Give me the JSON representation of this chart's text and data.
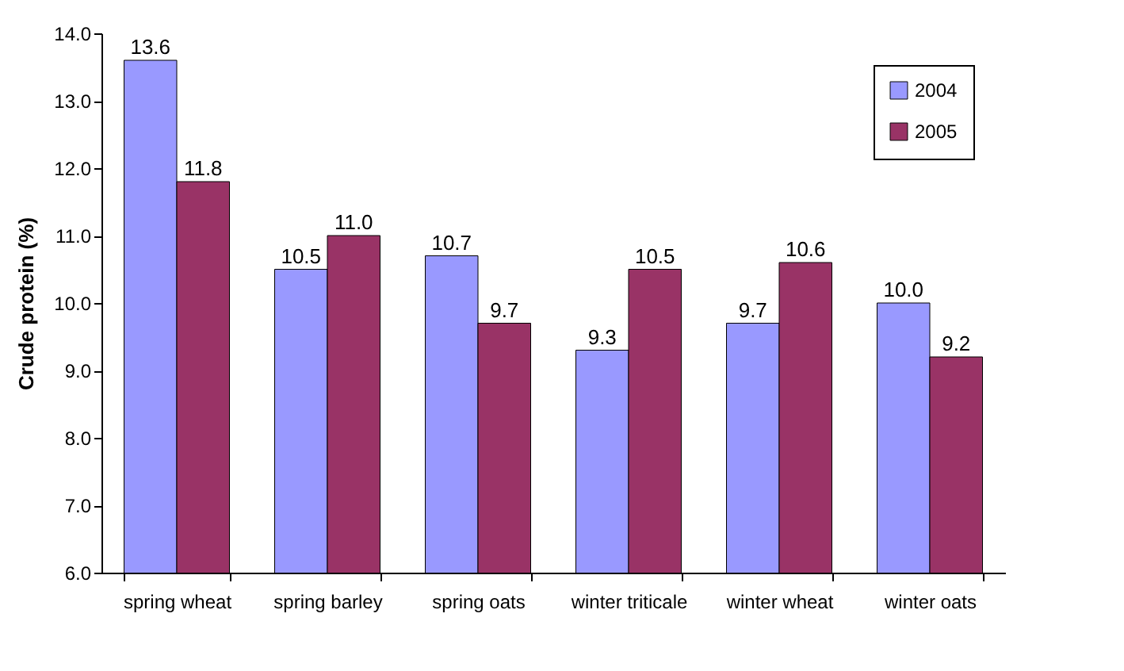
{
  "chart_data": {
    "type": "bar",
    "ylabel": "Crude protein (%)",
    "categories": [
      "spring wheat",
      "spring barley",
      "spring oats",
      "winter triticale",
      "winter wheat",
      "winter oats"
    ],
    "series": [
      {
        "name": "2004",
        "color": "#9999ff",
        "values": [
          13.6,
          10.5,
          10.7,
          9.3,
          9.7,
          10.0
        ],
        "value_labels": [
          "13.6",
          "10.5",
          "10.7",
          "9.3",
          "9.7",
          "10.0"
        ]
      },
      {
        "name": "2005",
        "color": "#993366",
        "values": [
          11.8,
          11.0,
          9.7,
          10.5,
          10.6,
          9.2
        ],
        "value_labels": [
          "11.8",
          "11.0",
          "9.7",
          "10.5",
          "10.6",
          "9.2"
        ]
      }
    ],
    "ylim": [
      6,
      14
    ],
    "yticks": [
      {
        "value": 6,
        "label": "6.0"
      },
      {
        "value": 7,
        "label": "7.0"
      },
      {
        "value": 8,
        "label": "8.0"
      },
      {
        "value": 9,
        "label": "9.0"
      },
      {
        "value": 10,
        "label": "10.0"
      },
      {
        "value": 11,
        "label": "11.0"
      },
      {
        "value": 12,
        "label": "12.0"
      },
      {
        "value": 13,
        "label": "13.0"
      },
      {
        "value": 14,
        "label": "14.0"
      }
    ],
    "grid": false,
    "legend": "top right"
  }
}
